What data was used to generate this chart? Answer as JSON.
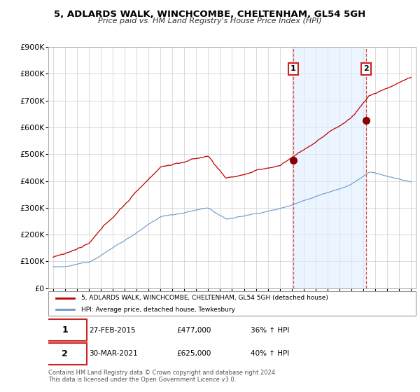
{
  "title": "5, ADLARDS WALK, WINCHCOMBE, CHELTENHAM, GL54 5GH",
  "subtitle": "Price paid vs. HM Land Registry's House Price Index (HPI)",
  "ylim": [
    0,
    900000
  ],
  "yticks": [
    0,
    100000,
    200000,
    300000,
    400000,
    500000,
    600000,
    700000,
    800000,
    900000
  ],
  "ytick_labels": [
    "£0",
    "£100K",
    "£200K",
    "£300K",
    "£400K",
    "£500K",
    "£600K",
    "£700K",
    "£800K",
    "£900K"
  ],
  "price_paid_color": "#bb0000",
  "hpi_color": "#6699cc",
  "hpi_fill_color": "#ddeeff",
  "plot_bg_color": "#ffffff",
  "grid_color": "#cccccc",
  "sale1_year": 2015.12,
  "sale1_price": 477000,
  "sale2_year": 2021.25,
  "sale2_price": 625000,
  "legend_label_price": "5, ADLARDS WALK, WINCHCOMBE, CHELTENHAM, GL54 5GH (detached house)",
  "legend_label_hpi": "HPI: Average price, detached house, Tewkesbury",
  "footer1": "Contains HM Land Registry data © Crown copyright and database right 2024.",
  "footer2": "This data is licensed under the Open Government Licence v3.0.",
  "xstart": 1995,
  "xend": 2025
}
